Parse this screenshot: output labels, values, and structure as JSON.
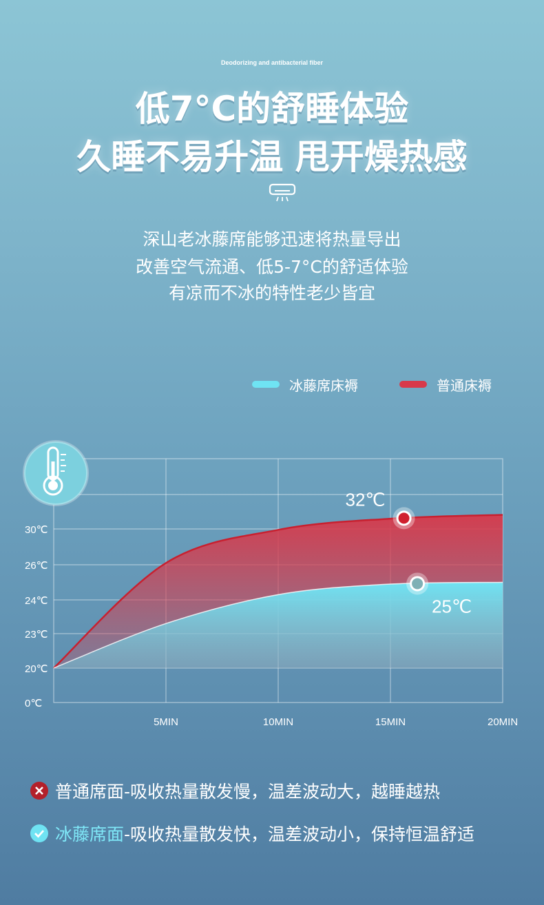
{
  "header": {
    "en_subtitle": "Deodorizing and antibacterial fiber",
    "line1": "低7°C的舒睡体验",
    "line2": "久睡不易升温 甩开燥热感"
  },
  "description": {
    "line1": "深山老冰藤席能够迅速将热量导出",
    "line2": "改善空气流通、低5-7°C的舒适体验",
    "line3": "有凉而不冰的特性老少皆宜"
  },
  "chart_data": {
    "type": "area",
    "x_ticks": [
      "5MIN",
      "10MIN",
      "15MIN",
      "20MIN"
    ],
    "y_ticks": [
      "0℃",
      "20℃",
      "23℃",
      "24℃",
      "26℃",
      "30℃"
    ],
    "legend": "top-right",
    "series": [
      {
        "name": "冰藤席床褥",
        "color": "#6fe3f3",
        "x": [
          0,
          5,
          10,
          15,
          20
        ],
        "y": [
          20,
          23.3,
          24.3,
          24.9,
          25
        ]
      },
      {
        "name": "普通床褥",
        "color": "#d8394a",
        "x": [
          0,
          5,
          10,
          15,
          20
        ],
        "y": [
          20,
          26.2,
          29.9,
          31.6,
          32.2
        ]
      }
    ],
    "annotations": [
      {
        "label": "32℃",
        "series": 1,
        "x": 15.6
      },
      {
        "label": "25℃",
        "series": 0,
        "x": 16.2
      }
    ]
  },
  "colors": {
    "cool": "#6fe3f3",
    "hot": "#d8394a"
  },
  "icons": {
    "top": "air-conditioner-icon",
    "chart": "thermometer-icon"
  },
  "bottom": {
    "bad_label": "普通席面",
    "bad_text": "-吸收热量散发慢，温差波动大，越睡越热",
    "good_label": "冰藤席面",
    "good_text": "-吸收热量散发快，温差波动小，保持恒温舒适"
  }
}
